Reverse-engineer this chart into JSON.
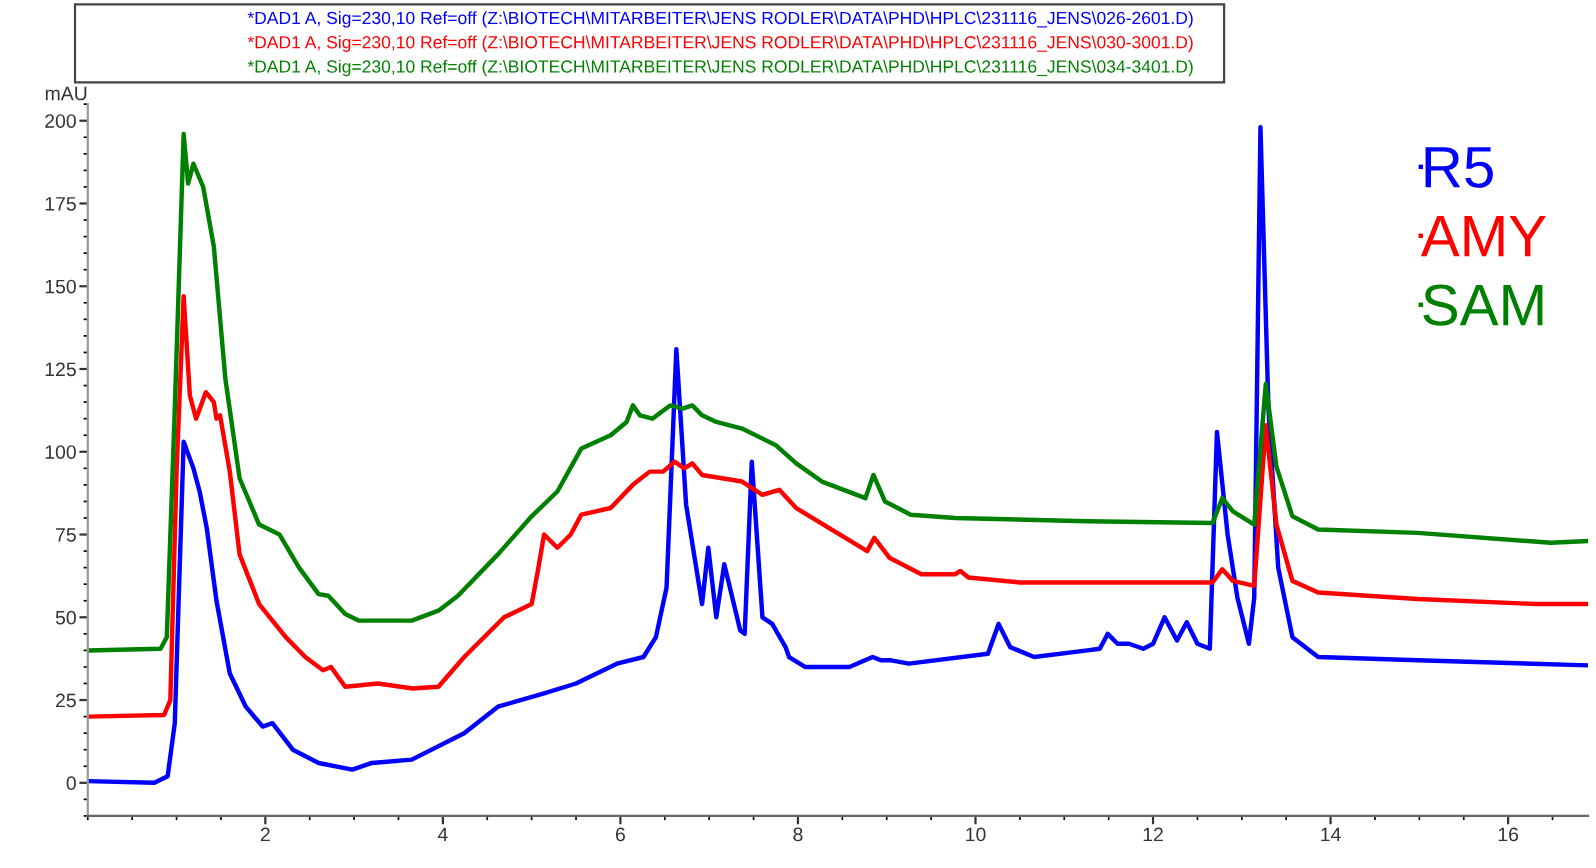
{
  "chart_data": {
    "type": "line",
    "annotations": [
      "*DAD1 A, Sig=230,10 Ref=off (Z:\\BIOTECH\\MITARBEITER\\JENS RODLER\\DATA\\PHD\\HPLC\\231116_JENS\\026-2601.D)",
      "*DAD1 A, Sig=230,10 Ref=off (Z:\\BIOTECH\\MITARBEITER\\JENS RODLER\\DATA\\PHD\\HPLC\\231116_JENS\\030-3001.D)",
      "*DAD1 A, Sig=230,10 Ref=off (Z:\\BIOTECH\\MITARBEITER\\JENS RODLER\\DATA\\PHD\\HPLC\\231116_JENS\\034-3401.D)"
    ],
    "ylabel": "mAU",
    "xlim": [
      0,
      16.9
    ],
    "ylim": [
      -10,
      205
    ],
    "xticks": [
      2,
      4,
      6,
      8,
      10,
      12,
      14,
      16
    ],
    "yticks": [
      0,
      25,
      50,
      75,
      100,
      125,
      150,
      175,
      200
    ],
    "grid": false,
    "legend": "top right",
    "series": [
      {
        "name": "R5",
        "color": "#0000ff",
        "x": [
          0,
          0.75,
          0.9,
          0.98,
          1.08,
          1.19,
          1.26,
          1.34,
          1.45,
          1.6,
          1.78,
          1.97,
          2.08,
          2.31,
          2.6,
          2.98,
          3.2,
          3.65,
          4.24,
          4.62,
          5.14,
          5.5,
          5.96,
          6.26,
          6.4,
          6.52,
          6.63,
          6.74,
          6.92,
          6.99,
          7.08,
          7.17,
          7.35,
          7.4,
          7.48,
          7.6,
          7.71,
          7.86,
          7.9,
          8.08,
          8.58,
          8.84,
          8.94,
          9.05,
          9.25,
          10.14,
          10.26,
          10.39,
          10.66,
          11.26,
          11.4,
          11.49,
          11.6,
          11.73,
          11.89,
          12.0,
          12.13,
          12.27,
          12.38,
          12.5,
          12.64,
          12.72,
          12.84,
          12.95,
          13.08,
          13.14,
          13.21,
          13.3,
          13.41,
          13.57,
          13.86,
          14.98,
          16.88
        ],
        "values": [
          0.5,
          0,
          2,
          18,
          103,
          95,
          88,
          77,
          55,
          33,
          23,
          17,
          18,
          10,
          6,
          4,
          6,
          7,
          15,
          23,
          27,
          30,
          36,
          38,
          44,
          59,
          131,
          84,
          54,
          71,
          50,
          66,
          46,
          45,
          97,
          50,
          48,
          41,
          38,
          35,
          35,
          38,
          37,
          37,
          36,
          39,
          48,
          41,
          38,
          40,
          40.5,
          45,
          42,
          42,
          40.5,
          42,
          50,
          43,
          48.5,
          42,
          40.5,
          106,
          75,
          56,
          42,
          56,
          198,
          113,
          65,
          44,
          38,
          37,
          35.5
        ]
      },
      {
        "name": "AMY",
        "color": "#ff0000",
        "x": [
          0,
          0.86,
          0.93,
          1.0,
          1.08,
          1.15,
          1.22,
          1.33,
          1.42,
          1.45,
          1.49,
          1.6,
          1.71,
          1.93,
          2.23,
          2.45,
          2.65,
          2.74,
          2.9,
          3.27,
          3.66,
          3.95,
          4.24,
          4.69,
          5.0,
          5.07,
          5.14,
          5.29,
          5.44,
          5.56,
          5.89,
          6.14,
          6.33,
          6.48,
          6.61,
          6.72,
          6.81,
          6.92,
          7.37,
          7.6,
          7.79,
          7.98,
          8.78,
          8.86,
          9.03,
          9.39,
          9.77,
          9.83,
          9.92,
          10.5,
          12.0,
          12.67,
          12.78,
          12.9,
          13.14,
          13.27,
          13.39,
          13.57,
          13.86,
          14.98,
          16.32,
          16.88
        ],
        "values": [
          20,
          20.5,
          25,
          94,
          147,
          117,
          110,
          118,
          115,
          110,
          111,
          94,
          69,
          54,
          44,
          38,
          34,
          35,
          29,
          30,
          28.5,
          29,
          38,
          50,
          54,
          64,
          75,
          71,
          75,
          81,
          83,
          90,
          94,
          94,
          97,
          95,
          96.5,
          93,
          91,
          87,
          88.5,
          83,
          70,
          74,
          68,
          63,
          63,
          64,
          62,
          60.5,
          60.5,
          60.5,
          64.5,
          61,
          59.5,
          108,
          78,
          61,
          57.5,
          55.5,
          54,
          54
        ]
      },
      {
        "name": "SAM",
        "color": "#008000",
        "x": [
          0,
          0.82,
          0.89,
          0.98,
          1.08,
          1.13,
          1.19,
          1.3,
          1.42,
          1.55,
          1.71,
          1.93,
          2.16,
          2.38,
          2.6,
          2.71,
          2.9,
          3.05,
          3.65,
          3.95,
          4.17,
          4.62,
          5.0,
          5.29,
          5.56,
          5.89,
          6.07,
          6.14,
          6.22,
          6.36,
          6.56,
          6.7,
          6.81,
          6.92,
          7.08,
          7.37,
          7.75,
          7.98,
          8.27,
          8.76,
          8.85,
          8.98,
          9.27,
          9.77,
          11.26,
          12.67,
          12.78,
          12.9,
          13.14,
          13.27,
          13.39,
          13.57,
          13.86,
          14.98,
          16.48,
          16.88
        ],
        "values": [
          40,
          40.5,
          44,
          113,
          196,
          181,
          187,
          180,
          162,
          122,
          92,
          78,
          75,
          65,
          57,
          56.5,
          51,
          49,
          49,
          52,
          56.5,
          69,
          80.5,
          88,
          101,
          105,
          109,
          114,
          111,
          110,
          114,
          113,
          114,
          111,
          109,
          107,
          102,
          96.5,
          91,
          86,
          93,
          85,
          81,
          80,
          79,
          78.5,
          86,
          82,
          78,
          120.5,
          95.5,
          80.5,
          76.5,
          75.5,
          72.5,
          73
        ]
      }
    ]
  }
}
